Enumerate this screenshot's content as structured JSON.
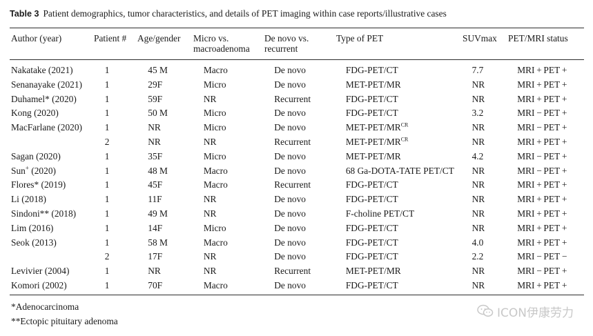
{
  "caption": {
    "label": "Table 3",
    "text": "Patient demographics, tumor characteristics, and details of PET imaging within case reports/illustrative cases"
  },
  "headers": {
    "author": "Author (year)",
    "patient": "Patient #",
    "age_gender": "Age/gender",
    "micro_macro_line1": "Micro vs.",
    "micro_macro_line2": "macroadenoma",
    "denovo_line1": "De novo vs.",
    "denovo_line2": "recurrent",
    "pet_type": "Type of PET",
    "suv": "SUVmax",
    "status": "PET/MRI status"
  },
  "rows": [
    {
      "author": "Nakatake (2021)",
      "patient": "1",
      "age": "45 M",
      "size": "Macro",
      "onset": "De novo",
      "pet": "FDG-PET/CT",
      "suv": "7.7",
      "status": "MRI + PET +"
    },
    {
      "author": "Senanayake (2021)",
      "patient": "1",
      "age": "29F",
      "size": "Micro",
      "onset": "De novo",
      "pet": "MET-PET/MR",
      "suv": "NR",
      "status": "MRI + PET +"
    },
    {
      "author": "Duhamel* (2020)",
      "patient": "1",
      "age": "59F",
      "size": "NR",
      "onset": "Recurrent",
      "pet": "FDG-PET/CT",
      "suv": "NR",
      "status": "MRI + PET +"
    },
    {
      "author": "Kong (2020)",
      "patient": "1",
      "age": "50 M",
      "size": "Micro",
      "onset": "De novo",
      "pet": "FDG-PET/CT",
      "suv": "3.2",
      "status": "MRI − PET +"
    },
    {
      "author": "MacFarlane (2020)",
      "patient": "1",
      "age": "NR",
      "size": "Micro",
      "onset": "De novo",
      "pet": "MET-PET/MR",
      "pet_sup": "CR",
      "suv": "NR",
      "status": "MRI − PET +"
    },
    {
      "author": "",
      "patient": "2",
      "age": "NR",
      "size": "NR",
      "onset": "Recurrent",
      "pet": "MET-PET/MR",
      "pet_sup": "CR",
      "suv": "NR",
      "status": "MRI + PET +"
    },
    {
      "author": "Sagan (2020)",
      "patient": "1",
      "age": "35F",
      "size": "Micro",
      "onset": "De novo",
      "pet": "MET-PET/MR",
      "suv": "4.2",
      "status": "MRI − PET +"
    },
    {
      "author": "Sun",
      "author_sup": "+",
      "author_suffix": " (2020)",
      "patient": "1",
      "age": "48 M",
      "size": "Macro",
      "onset": "De novo",
      "pet": "68 Ga-DOTA-TATE PET/CT",
      "suv": "NR",
      "status": "MRI − PET +"
    },
    {
      "author": "Flores* (2019)",
      "patient": "1",
      "age": "45F",
      "size": "Macro",
      "onset": "Recurrent",
      "pet": "FDG-PET/CT",
      "suv": "NR",
      "status": "MRI + PET +"
    },
    {
      "author": "Li (2018)",
      "patient": "1",
      "age": "11F",
      "size": "NR",
      "onset": "De novo",
      "pet": "FDG-PET/CT",
      "suv": "NR",
      "status": "MRI + PET +"
    },
    {
      "author": "Sindoni** (2018)",
      "patient": "1",
      "age": "49 M",
      "size": "NR",
      "onset": "De novo",
      "pet": "F-choline PET/CT",
      "suv": "NR",
      "status": "MRI + PET +"
    },
    {
      "author": "Lim (2016)",
      "patient": "1",
      "age": "14F",
      "size": "Micro",
      "onset": "De novo",
      "pet": "FDG-PET/CT",
      "suv": "NR",
      "status": "MRI + PET +"
    },
    {
      "author": "Seok (2013)",
      "patient": "1",
      "age": "58 M",
      "size": "Macro",
      "onset": "De novo",
      "pet": "FDG-PET/CT",
      "suv": "4.0",
      "status": "MRI + PET +"
    },
    {
      "author": "",
      "patient": "2",
      "age": "17F",
      "size": "NR",
      "onset": "De novo",
      "pet": "FDG-PET/CT",
      "suv": "2.2",
      "status": "MRI − PET −"
    },
    {
      "author": "Levivier (2004)",
      "patient": "1",
      "age": "NR",
      "size": "NR",
      "onset": "Recurrent",
      "pet": "MET-PET/MR",
      "suv": "NR",
      "status": "MRI − PET +"
    },
    {
      "author": "Komori (2002)",
      "patient": "1",
      "age": "70F",
      "size": "Macro",
      "onset": "De novo",
      "pet": "FDG-PET/CT",
      "suv": "NR",
      "status": "MRI + PET +"
    }
  ],
  "footnotes": [
    "*Adenocarcinoma",
    "**Ectopic pituitary adenoma"
  ],
  "watermark": {
    "text": "ICON伊康劳力",
    "icon": "wechat-icon",
    "color": "#c8c8c8"
  }
}
